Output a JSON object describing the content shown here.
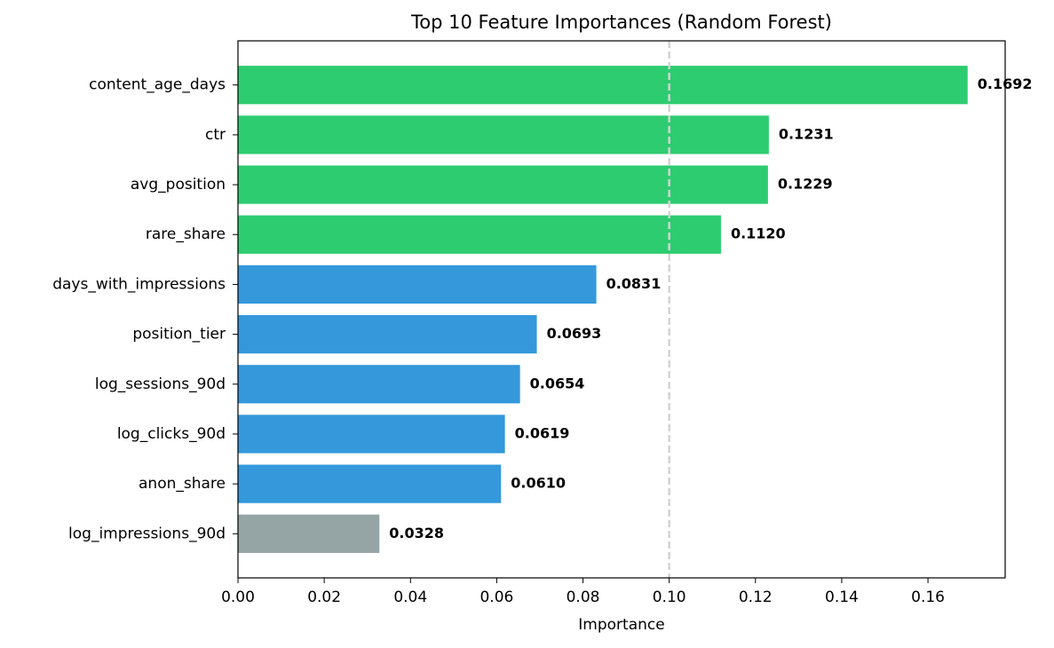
{
  "chart_data": {
    "type": "barh",
    "title": "Top 10 Feature Importances (Random Forest)",
    "xlabel": "Importance",
    "categories": [
      "content_age_days",
      "ctr",
      "avg_position",
      "rare_share",
      "days_with_impressions",
      "position_tier",
      "log_sessions_90d",
      "log_clicks_90d",
      "anon_share",
      "log_impressions_90d"
    ],
    "values": [
      0.1692,
      0.1231,
      0.1229,
      0.112,
      0.0831,
      0.0693,
      0.0654,
      0.0619,
      0.061,
      0.0328
    ],
    "value_labels": [
      "0.1692",
      "0.1231",
      "0.1229",
      "0.1120",
      "0.0831",
      "0.0693",
      "0.0654",
      "0.0619",
      "0.0610",
      "0.0328"
    ],
    "colors": [
      "#2ecc71",
      "#2ecc71",
      "#2ecc71",
      "#2ecc71",
      "#3498db",
      "#3498db",
      "#3498db",
      "#3498db",
      "#3498db",
      "#95a5a6"
    ],
    "xlim": [
      0,
      0.1779
    ],
    "xticks": [
      {
        "value": 0,
        "label": "0.00"
      },
      {
        "value": 0.02,
        "label": "0.02"
      },
      {
        "value": 0.04,
        "label": "0.04"
      },
      {
        "value": 0.06,
        "label": "0.06"
      },
      {
        "value": 0.08,
        "label": "0.08"
      },
      {
        "value": 0.1,
        "label": "0.10"
      },
      {
        "value": 0.12,
        "label": "0.12"
      },
      {
        "value": 0.14,
        "label": "0.14"
      },
      {
        "value": 0.16,
        "label": "0.16"
      }
    ],
    "reference_line": 0.1
  }
}
